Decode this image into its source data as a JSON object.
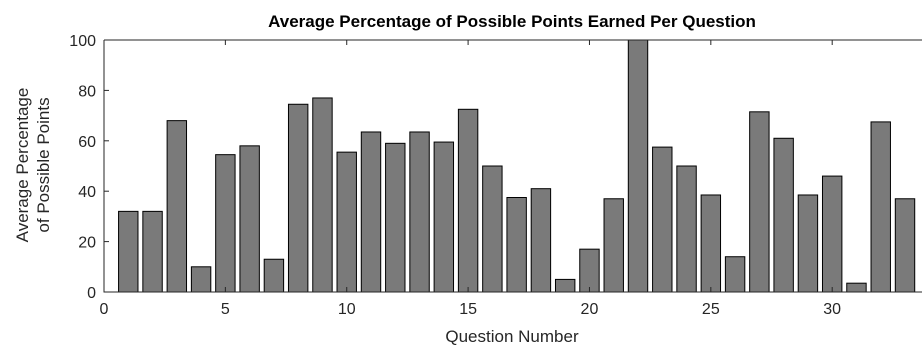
{
  "chart_data": {
    "type": "bar",
    "title": "Average Percentage of Possible Points Earned Per Question",
    "xlabel": "Question Number",
    "ylabel": [
      "Average Percentage",
      "of Possible Points"
    ],
    "xlim": [
      0,
      33.7
    ],
    "ylim": [
      0,
      100
    ],
    "x_ticks": [
      0,
      5,
      10,
      15,
      20,
      25,
      30
    ],
    "y_ticks": [
      0,
      20,
      40,
      60,
      80,
      100
    ],
    "categories": [
      1,
      2,
      3,
      4,
      5,
      6,
      7,
      8,
      9,
      10,
      11,
      12,
      13,
      14,
      15,
      16,
      17,
      18,
      19,
      20,
      21,
      22,
      23,
      24,
      25,
      26,
      27,
      28,
      29,
      30,
      31,
      32,
      33
    ],
    "values": [
      32,
      32,
      68,
      10,
      54.5,
      58,
      13,
      74.5,
      77,
      55.5,
      63.5,
      59,
      63.5,
      59.5,
      72.5,
      50,
      37.5,
      41,
      5,
      17,
      37,
      100,
      57.5,
      50,
      38.5,
      14,
      71.5,
      61,
      38.5,
      46,
      3.5,
      67.5,
      37
    ],
    "bar_color": "#7a7a7a",
    "grid": false
  }
}
